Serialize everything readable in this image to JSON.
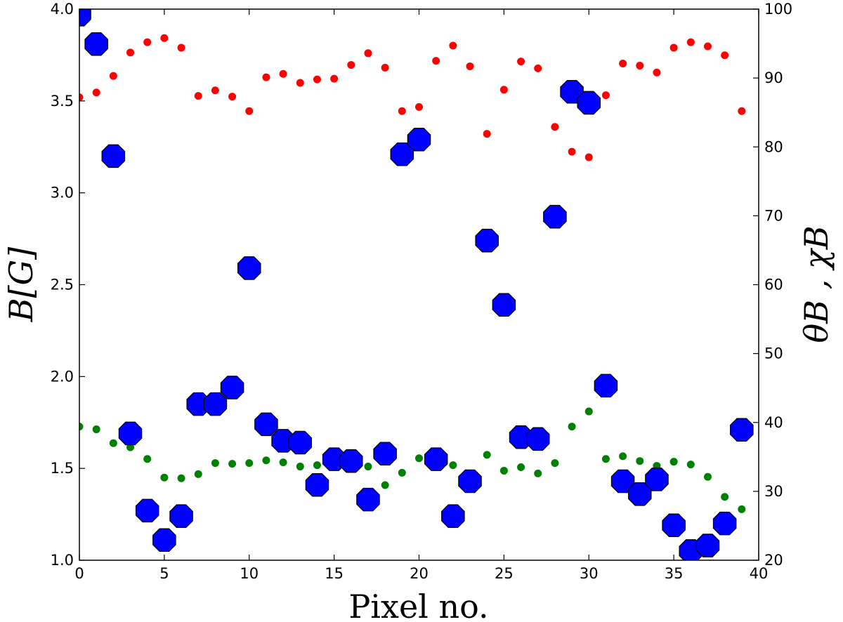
{
  "chart_data": {
    "type": "scatter",
    "title": "",
    "xlabel": "Pixel no.",
    "ylabel_left": "B[G]",
    "ylabel_right": "θB , χB",
    "xlim": [
      0,
      40
    ],
    "ylim_left": [
      1.0,
      4.0
    ],
    "ylim_right": [
      20,
      100
    ],
    "grid": false,
    "legend": "none",
    "x_ticks": [
      0,
      5,
      10,
      15,
      20,
      25,
      30,
      35,
      40
    ],
    "y_left_ticks": [
      "1.0",
      "1.5",
      "2.0",
      "2.5",
      "3.0",
      "3.5",
      "4.0"
    ],
    "y_right_ticks": [
      "20",
      "30",
      "40",
      "50",
      "60",
      "70",
      "80",
      "90",
      "100"
    ],
    "series": [
      {
        "name": "B",
        "axis": "left",
        "marker": "octagon",
        "color": "#0000ff",
        "edge_color": "#000000",
        "x": [
          0,
          1,
          2,
          3,
          4,
          5,
          6,
          7,
          8,
          9,
          10,
          11,
          12,
          13,
          14,
          15,
          16,
          17,
          18,
          19,
          20,
          21,
          22,
          23,
          24,
          25,
          26,
          27,
          28,
          29,
          30,
          31,
          32,
          33,
          34,
          35,
          36,
          37,
          38,
          39
        ],
        "values": [
          3.97,
          3.81,
          3.2,
          1.69,
          1.27,
          1.11,
          1.24,
          1.85,
          1.85,
          1.94,
          2.59,
          1.74,
          1.65,
          1.64,
          1.41,
          1.55,
          1.54,
          1.33,
          1.58,
          3.21,
          3.29,
          1.55,
          1.24,
          1.43,
          2.74,
          2.39,
          1.67,
          1.66,
          2.87,
          3.55,
          3.49,
          1.95,
          1.43,
          1.36,
          1.44,
          1.19,
          1.05,
          1.08,
          1.2,
          1.71
        ]
      },
      {
        "name": "θB",
        "axis": "right",
        "marker": "circle",
        "color": "#ff0000",
        "x": [
          0,
          1,
          2,
          3,
          4,
          5,
          6,
          7,
          8,
          9,
          10,
          11,
          12,
          13,
          14,
          15,
          16,
          17,
          18,
          19,
          20,
          21,
          22,
          23,
          24,
          25,
          26,
          27,
          28,
          29,
          30,
          31,
          32,
          33,
          34,
          35,
          36,
          37,
          38,
          39
        ],
        "values": [
          87.2,
          87.9,
          90.3,
          93.7,
          95.2,
          95.8,
          94.4,
          87.4,
          88.2,
          87.3,
          85.2,
          90.1,
          90.6,
          89.3,
          89.8,
          89.9,
          91.9,
          93.6,
          91.5,
          85.2,
          85.8,
          92.5,
          94.7,
          91.7,
          81.9,
          88.3,
          92.4,
          91.4,
          82.9,
          79.3,
          78.5,
          87.5,
          92.1,
          91.8,
          90.8,
          94.4,
          95.2,
          94.6,
          93.3,
          85.2
        ]
      },
      {
        "name": "χB",
        "axis": "right",
        "marker": "circle",
        "color": "#008000",
        "x": [
          0,
          1,
          2,
          3,
          4,
          5,
          6,
          7,
          8,
          9,
          10,
          11,
          12,
          13,
          14,
          15,
          16,
          17,
          18,
          19,
          20,
          21,
          22,
          23,
          24,
          25,
          26,
          27,
          28,
          29,
          30,
          31,
          32,
          33,
          34,
          35,
          36,
          37,
          38,
          39
        ],
        "values": [
          39.4,
          39.0,
          37.0,
          36.4,
          34.7,
          32.0,
          31.9,
          32.5,
          34.1,
          34.0,
          34.1,
          34.5,
          34.2,
          33.6,
          33.8,
          33.7,
          34.3,
          33.6,
          30.9,
          32.7,
          34.8,
          34.6,
          33.8,
          32.4,
          35.3,
          33.0,
          33.5,
          32.6,
          34.1,
          39.4,
          41.6,
          34.7,
          35.1,
          34.4,
          33.7,
          34.3,
          33.9,
          32.1,
          29.2,
          27.4
        ]
      }
    ]
  }
}
